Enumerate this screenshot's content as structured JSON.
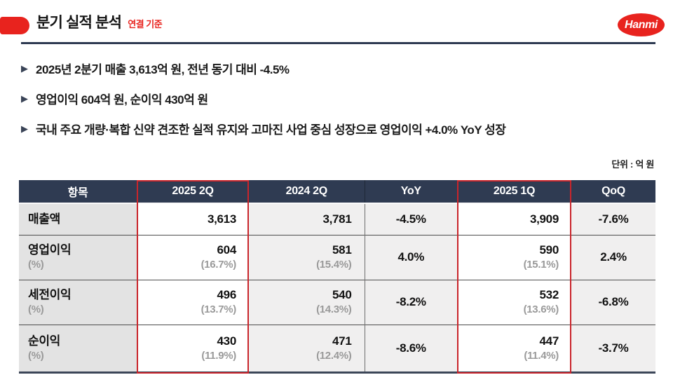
{
  "header": {
    "title": "분기 실적 분석",
    "subtitle": "연결 기준",
    "logo_text": "Hanmi"
  },
  "icons": {
    "bullet": "▶"
  },
  "bullets": [
    {
      "text": "2025년 2분기 매출 3,613억 원, 전년 동기 대비 -4.5%"
    },
    {
      "text": "영업이익 604억 원, 순이익 430억 원"
    },
    {
      "text": "국내 주요 개량·복합 신약 견조한 실적 유지와 고마진 사업 중심 성장으로 영업이익 +4.0% YoY 성장"
    }
  ],
  "table": {
    "unit_label": "단위 : 억 원",
    "columns": [
      "항목",
      "2025 2Q",
      "2024 2Q",
      "YoY",
      "2025 1Q",
      "QoQ"
    ],
    "highlight_columns": [
      "2025 2Q",
      "2025 1Q"
    ],
    "rows": [
      {
        "label": "매출액",
        "label_sub": "",
        "cells": [
          {
            "main": "3,613",
            "sub": ""
          },
          {
            "main": "3,781",
            "sub": ""
          },
          {
            "main": "-4.5%",
            "sub": ""
          },
          {
            "main": "3,909",
            "sub": ""
          },
          {
            "main": "-7.6%",
            "sub": ""
          }
        ]
      },
      {
        "label": "영업이익",
        "label_sub": "(%)",
        "cells": [
          {
            "main": "604",
            "sub": "(16.7%)"
          },
          {
            "main": "581",
            "sub": "(15.4%)"
          },
          {
            "main": "4.0%",
            "sub": ""
          },
          {
            "main": "590",
            "sub": "(15.1%)"
          },
          {
            "main": "2.4%",
            "sub": ""
          }
        ]
      },
      {
        "label": "세전이익",
        "label_sub": "(%)",
        "cells": [
          {
            "main": "496",
            "sub": "(13.7%)"
          },
          {
            "main": "540",
            "sub": "(14.3%)"
          },
          {
            "main": "-8.2%",
            "sub": ""
          },
          {
            "main": "532",
            "sub": "(13.6%)"
          },
          {
            "main": "-6.8%",
            "sub": ""
          }
        ]
      },
      {
        "label": "순이익",
        "label_sub": "(%)",
        "cells": [
          {
            "main": "430",
            "sub": "(11.9%)"
          },
          {
            "main": "471",
            "sub": "(12.4%)"
          },
          {
            "main": "-8.6%",
            "sub": ""
          },
          {
            "main": "447",
            "sub": "(11.4%)"
          },
          {
            "main": "-3.7%",
            "sub": ""
          }
        ]
      }
    ]
  },
  "colors": {
    "brand_red": "#e8231e",
    "navy_header": "#2f3b52",
    "highlight_border": "#c9252b",
    "cell_gray": "#f0efef",
    "label_gray": "#e3e3e3",
    "sub_text_gray": "#9a9a9a"
  }
}
